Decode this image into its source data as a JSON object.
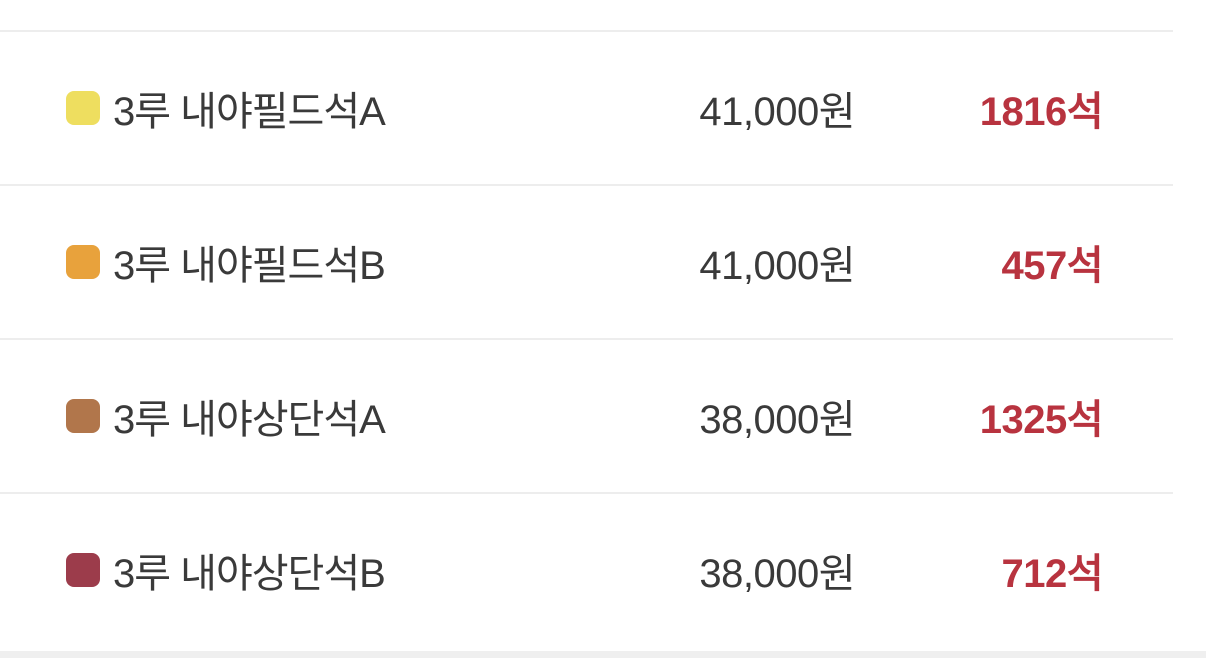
{
  "colors": {
    "background": "#ffffff",
    "divider": "#ededed",
    "bottom_band": "#efefef",
    "name_text": "#3a3a3a",
    "price_text": "#3a3a3a",
    "seats_text": "#b8333f"
  },
  "seat_list": {
    "rows": [
      {
        "swatch_color": "#eede5f",
        "name": "3루 내야필드석A",
        "price": "41,000원",
        "seats": "1816석"
      },
      {
        "swatch_color": "#e8a23c",
        "name": "3루 내야필드석B",
        "price": "41,000원",
        "seats": "457석"
      },
      {
        "swatch_color": "#b1764b",
        "name": "3루 내야상단석A",
        "price": "38,000원",
        "seats": "1325석"
      },
      {
        "swatch_color": "#9c3c4b",
        "name": "3루 내야상단석B",
        "price": "38,000원",
        "seats": "712석"
      }
    ]
  }
}
